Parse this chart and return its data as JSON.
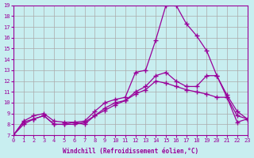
{
  "xlabel": "Windchill (Refroidissement éolien,°C)",
  "bg_color": "#c8eef0",
  "line_color": "#990099",
  "grid_color": "#aaaaaa",
  "xmin": 0,
  "xmax": 23,
  "ymin": 7,
  "ymax": 19,
  "line1_x": [
    0,
    1,
    2,
    3,
    4,
    5,
    6,
    7,
    8,
    9,
    10,
    11,
    12,
    13,
    14,
    15,
    16,
    17,
    18,
    19,
    20,
    21,
    22,
    23
  ],
  "line1_y": [
    7.0,
    8.3,
    8.8,
    9.0,
    8.3,
    8.2,
    8.2,
    8.3,
    9.2,
    10.0,
    10.3,
    10.5,
    12.8,
    13.0,
    15.8,
    19.0,
    19.0,
    17.3,
    16.2,
    14.8,
    12.5,
    10.7,
    9.2,
    8.5
  ],
  "line2_x": [
    0,
    1,
    2,
    3,
    4,
    5,
    6,
    7,
    8,
    9,
    10,
    11,
    12,
    13,
    14,
    15,
    16,
    17,
    18,
    19,
    20,
    21,
    22,
    23
  ],
  "line2_y": [
    7.0,
    8.0,
    8.5,
    8.8,
    8.0,
    8.0,
    8.0,
    8.2,
    8.8,
    9.5,
    10.0,
    10.2,
    11.0,
    11.5,
    12.5,
    12.8,
    12.0,
    11.5,
    11.5,
    12.5,
    12.5,
    10.5,
    8.2,
    8.5
  ],
  "line3_x": [
    0,
    1,
    2,
    3,
    4,
    5,
    6,
    7,
    8,
    9,
    10,
    11,
    12,
    13,
    14,
    15,
    16,
    17,
    18,
    19,
    20,
    21,
    22,
    23
  ],
  "line3_y": [
    7.0,
    8.2,
    8.5,
    8.8,
    8.0,
    8.0,
    8.2,
    8.0,
    8.8,
    9.3,
    9.8,
    10.2,
    10.8,
    11.2,
    12.0,
    11.8,
    11.5,
    11.2,
    11.0,
    10.8,
    10.5,
    10.5,
    8.8,
    8.5
  ]
}
